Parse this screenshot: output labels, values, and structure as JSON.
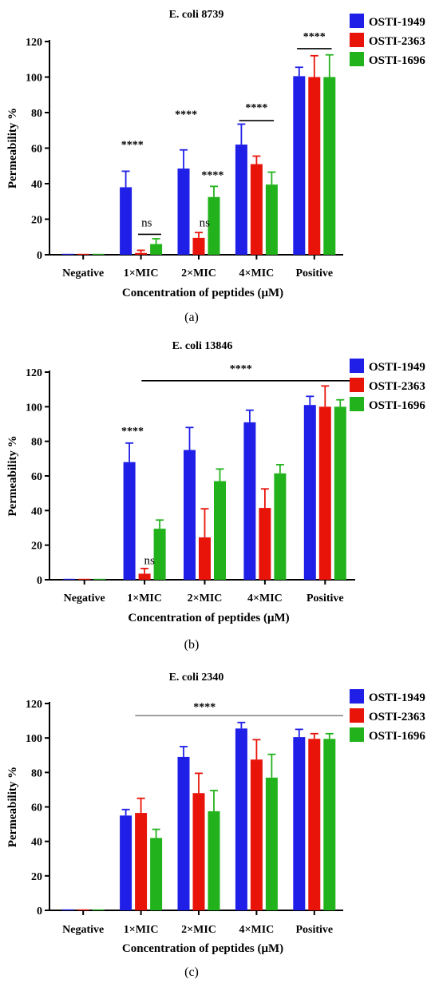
{
  "colors": {
    "OSTI-1949": "#1f1fe8",
    "OSTI-2363": "#e8140a",
    "OSTI-1696": "#22b31c",
    "axis": "#000000"
  },
  "chart_data": [
    {
      "type": "bar",
      "caption": "(a)",
      "title": "E. coli 8739",
      "xlabel": "Concentration of peptides (μM)",
      "ylabel": "Permeability %",
      "ylim": [
        0,
        120
      ],
      "yticks": [
        0,
        20,
        40,
        60,
        80,
        100,
        120
      ],
      "categories": [
        "Negative",
        "1×MIC",
        "2×MIC",
        "4×MIC",
        "Positive"
      ],
      "legend": "top-right",
      "series": [
        {
          "name": "OSTI-1949",
          "values": [
            0,
            38,
            48.5,
            62,
            100.5
          ],
          "errors": [
            0,
            9,
            10.5,
            11.5,
            5
          ]
        },
        {
          "name": "OSTI-2363",
          "values": [
            0,
            1,
            9.5,
            51,
            100
          ],
          "errors": [
            0,
            1.5,
            3,
            4.5,
            12
          ]
        },
        {
          "name": "OSTI-1696",
          "values": [
            0,
            6,
            32.5,
            39.5,
            100
          ],
          "errors": [
            0,
            3,
            6,
            7,
            12.5
          ]
        }
      ],
      "annotations": [
        {
          "text": "****",
          "category": 0.85,
          "y": 60
        },
        {
          "text": "ns",
          "category": 1.1,
          "y": 16
        },
        {
          "text": "****",
          "category": 1.78,
          "y": 77
        },
        {
          "text": "ns",
          "category": 2.1,
          "y": 16
        },
        {
          "text": "****",
          "category": 2.24,
          "y": 43
        },
        {
          "text": "****",
          "category": 3.0,
          "y": 81
        },
        {
          "text": "****",
          "category": 4.0,
          "y": 121
        }
      ],
      "lines": [
        {
          "from": 0.95,
          "to": 1.35,
          "y": 11.5
        },
        {
          "from": 2.7,
          "to": 3.3,
          "y": 75.5
        },
        {
          "from": 3.7,
          "to": 4.3,
          "y": 116
        }
      ]
    },
    {
      "type": "bar",
      "caption": "(b)",
      "title": "E. coli 13846",
      "xlabel": "Concentration of peptides (μM)",
      "ylabel": "Permeability %",
      "ylim": [
        0,
        120
      ],
      "yticks": [
        0,
        20,
        40,
        60,
        80,
        100,
        120
      ],
      "categories": [
        "Negative",
        "1×MIC",
        "2×MIC",
        "4×MIC",
        "Positive"
      ],
      "legend": "top-right",
      "series": [
        {
          "name": "OSTI-1949",
          "values": [
            0,
            68,
            75,
            91,
            101
          ],
          "errors": [
            0,
            11,
            13,
            7,
            5
          ]
        },
        {
          "name": "OSTI-2363",
          "values": [
            0,
            3.5,
            24.5,
            41.5,
            100
          ],
          "errors": [
            0,
            3,
            16.5,
            11,
            12
          ]
        },
        {
          "name": "OSTI-1696",
          "values": [
            0,
            29.5,
            57,
            61.5,
            100
          ],
          "errors": [
            0,
            5,
            7,
            5,
            4
          ]
        }
      ],
      "annotations": [
        {
          "text": "****",
          "category": 0.8,
          "y": 84
        },
        {
          "text": "ns",
          "category": 1.08,
          "y": 9
        },
        {
          "text": "****",
          "category": 2.6,
          "y": 120
        }
      ],
      "lines": [
        {
          "from": 0.95,
          "to": 4.45,
          "y": 115
        }
      ]
    },
    {
      "type": "bar",
      "caption": "(c)",
      "title": "E. coli 2340",
      "xlabel": "Concentration of peptides (μM)",
      "ylabel": "Permeability %",
      "ylim": [
        0,
        120
      ],
      "yticks": [
        0,
        20,
        40,
        60,
        80,
        100,
        120
      ],
      "categories": [
        "Negative",
        "1×MIC",
        "2×MIC",
        "4×MIC",
        "Positive"
      ],
      "legend": "top-right",
      "series": [
        {
          "name": "OSTI-1949",
          "values": [
            0,
            55,
            89,
            105.5,
            100.5
          ],
          "errors": [
            0,
            3.5,
            6,
            3.5,
            4.5
          ]
        },
        {
          "name": "OSTI-2363",
          "values": [
            0,
            56.5,
            68,
            87.5,
            99.5
          ],
          "errors": [
            0,
            8.5,
            11.5,
            11.5,
            3
          ]
        },
        {
          "name": "OSTI-1696",
          "values": [
            0,
            42,
            57.5,
            77,
            99.5
          ],
          "errors": [
            0,
            5,
            12,
            13.5,
            3
          ]
        }
      ],
      "annotations": [
        {
          "text": "****",
          "category": 2.1,
          "y": 116
        }
      ],
      "lines": [
        {
          "from": 0.9,
          "to": 4.5,
          "y": 113
        }
      ]
    }
  ]
}
